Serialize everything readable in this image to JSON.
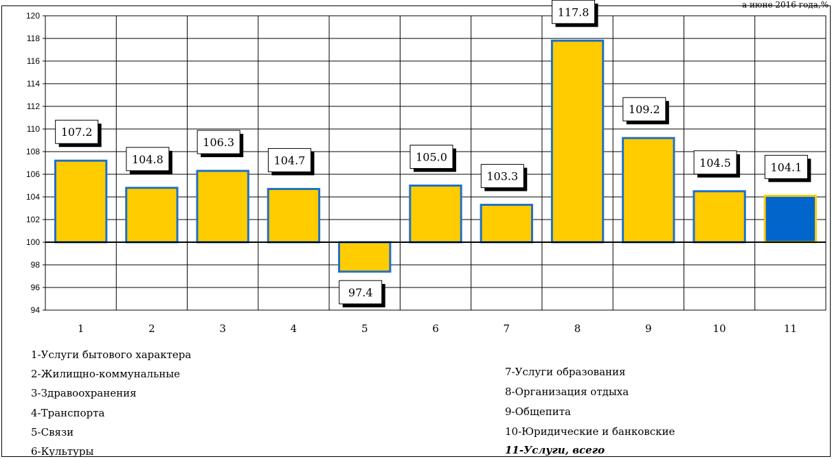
{
  "corner_note": "а июне 2016 года,%",
  "chart_data": {
    "type": "bar",
    "categories": [
      "1",
      "2",
      "3",
      "4",
      "5",
      "6",
      "7",
      "8",
      "9",
      "10",
      "11"
    ],
    "values": [
      107.2,
      104.8,
      106.3,
      104.7,
      97.4,
      105.0,
      103.3,
      117.8,
      109.2,
      104.5,
      104.1
    ],
    "value_labels": [
      "107.2",
      "104.8",
      "106.3",
      "104.7",
      "97.4",
      "105.0",
      "103.3",
      "117.8",
      "109.2",
      "104.5",
      "104.1"
    ],
    "baseline": 100,
    "ylim": [
      94,
      120
    ],
    "yticks": [
      "94",
      "96",
      "98",
      "100",
      "102",
      "104",
      "106",
      "108",
      "110",
      "112",
      "114",
      "116",
      "118",
      "120"
    ],
    "grid": true,
    "colors": {
      "bar_fill": "#FFCC00",
      "bar_stroke": "#1F6FC4",
      "highlight_fill": "#0066CC",
      "highlight_stroke": "#FFCC00"
    },
    "highlight_index": 10
  },
  "legend": {
    "left": [
      "1-Услуги бытового характера",
      "2-Жилищно-коммунальные",
      "3-Здравоохранения",
      "4-Транспорта",
      "5-Связи",
      "6-Культуры"
    ],
    "right": [
      "7-Услуги образования",
      " 8-Организация отдыха",
      " 9-Общепита",
      "10-Юридические и банковские",
      "11-Услуги, всего"
    ]
  }
}
